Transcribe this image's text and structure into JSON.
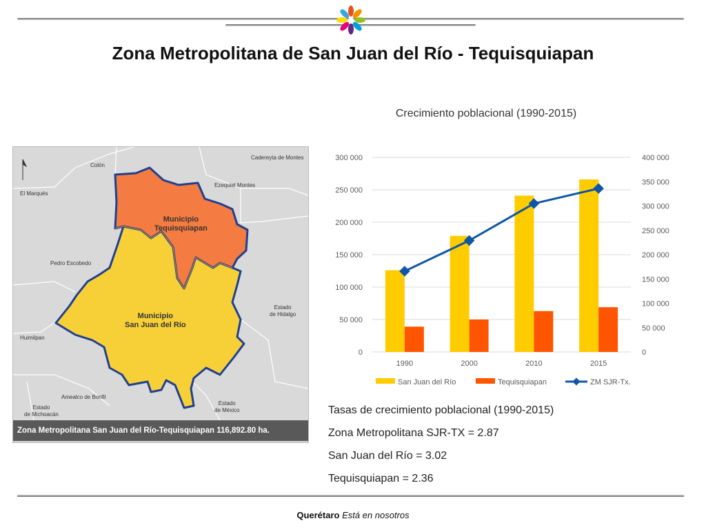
{
  "slide": {
    "title": "Zona Metropolitana de San Juan del Río - Tequisquiapan",
    "footer_brand": "Querétaro",
    "footer_slogan": "Está en nosotros"
  },
  "map": {
    "caption": "Zona Metropolitana San Juan del Río-Tequisquiapan 116,892.80 ha.",
    "region_labels": {
      "colon": "Colón",
      "cadereyta": "Cadereyta de Montes",
      "el_marques": "El Marqués",
      "ezequiel": "Ezequiel Montes",
      "pedro": "Pedro Escobedo",
      "hidalgo_1": "Estado",
      "hidalgo_2": "de Hidalgo",
      "huimilpan": "Huimilpan",
      "amealco": "Amealco de Bonfil",
      "mexico_1": "Estado",
      "mexico_2": "de México",
      "michoacan_1": "Estado",
      "michoacan_2": "de Michoacán"
    },
    "municipalities": {
      "teq_1": "Municipio",
      "teq_2": "Tequisquiapan",
      "sjr_1": "Municipio",
      "sjr_2": "San Juan del Río"
    },
    "colors": {
      "sjr": "#f7d038",
      "teq": "#f47b41",
      "border": "#1f3f8f",
      "land": "#d9d9d9"
    }
  },
  "chart_data": {
    "type": "bar",
    "title": "Crecimiento poblacional (1990-2015)",
    "categories": [
      "1990",
      "2000",
      "2010",
      "2015"
    ],
    "series": [
      {
        "name": "San Juan del Río",
        "type": "bar",
        "axis": "left",
        "color": "#ffcc00",
        "values": [
          126000,
          179000,
          241000,
          266000
        ]
      },
      {
        "name": "Tequisquiapan",
        "type": "bar",
        "axis": "left",
        "color": "#ff5500",
        "values": [
          39000,
          50000,
          63000,
          69000
        ]
      },
      {
        "name": "ZM SJR-Tx.",
        "type": "line",
        "axis": "right",
        "color": "#0f56a6",
        "values": [
          166000,
          229000,
          305000,
          336000
        ]
      }
    ],
    "left_axis": {
      "min": 0,
      "max": 300000,
      "ticks": [
        "0",
        "50 000",
        "100 000",
        "150 000",
        "200 000",
        "250 000",
        "300 000"
      ]
    },
    "right_axis": {
      "min": 0,
      "max": 400000,
      "ticks": [
        "0",
        "50 000",
        "100 000",
        "150 000",
        "200 000",
        "250 000",
        "300 000",
        "350 000",
        "400 000"
      ]
    },
    "grid": true,
    "legend": "bottom"
  },
  "rates": {
    "heading": "Tasas de crecimiento poblacional (1990-2015)",
    "zm": "Zona Metropolitana SJR-TX = 2.87",
    "sjr": "San Juan del Río = 3.02",
    "teq": "Tequisquiapan = 2.36"
  }
}
